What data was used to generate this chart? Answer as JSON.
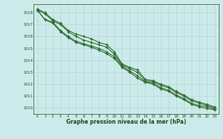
{
  "x": [
    0,
    1,
    2,
    3,
    4,
    5,
    6,
    7,
    8,
    9,
    10,
    11,
    12,
    13,
    14,
    15,
    16,
    17,
    18,
    19,
    20,
    21,
    22,
    23
  ],
  "line1": [
    1018.3,
    1018.0,
    1017.4,
    1017.1,
    1016.5,
    1016.2,
    1016.0,
    1015.8,
    1015.5,
    1015.3,
    1014.7,
    1013.7,
    1013.4,
    1013.2,
    1012.4,
    1012.3,
    1012.0,
    1011.8,
    1011.4,
    1011.1,
    1010.7,
    1010.5,
    1010.3,
    1010.1
  ],
  "line2": [
    1018.2,
    1017.9,
    1017.3,
    1017.0,
    1016.4,
    1016.0,
    1015.7,
    1015.5,
    1015.3,
    1015.1,
    1014.5,
    1013.6,
    1013.3,
    1013.0,
    1012.3,
    1012.2,
    1011.9,
    1011.7,
    1011.3,
    1011.0,
    1010.6,
    1010.4,
    1010.2,
    1010.0
  ],
  "line3": [
    1018.2,
    1017.4,
    1017.2,
    1016.5,
    1016.0,
    1015.6,
    1015.4,
    1015.2,
    1015.0,
    1014.7,
    1014.3,
    1013.5,
    1013.1,
    1012.7,
    1012.2,
    1012.1,
    1011.7,
    1011.5,
    1011.1,
    1010.8,
    1010.4,
    1010.2,
    1010.1,
    1009.9
  ],
  "line4": [
    1018.2,
    1017.4,
    1017.1,
    1016.4,
    1015.9,
    1015.5,
    1015.3,
    1015.1,
    1014.85,
    1014.55,
    1014.15,
    1013.4,
    1013.0,
    1012.5,
    1012.15,
    1012.0,
    1011.6,
    1011.4,
    1011.0,
    1010.7,
    1010.3,
    1010.1,
    1009.95,
    1009.85
  ],
  "line_color": "#2d6a2d",
  "marker_color": "#2d6a2d",
  "bg_color": "#cceaea",
  "grid_major_color": "#aad4d4",
  "grid_minor_color": "#bbdddd",
  "axis_label_color": "#1a4a1a",
  "tick_color": "#1a4a1a",
  "ylim": [
    1009.5,
    1018.7
  ],
  "xlim": [
    -0.5,
    23.5
  ],
  "yticks": [
    1010,
    1011,
    1012,
    1013,
    1014,
    1015,
    1016,
    1017,
    1018
  ],
  "xticks": [
    0,
    1,
    2,
    3,
    4,
    5,
    6,
    7,
    8,
    9,
    10,
    11,
    12,
    13,
    14,
    15,
    16,
    17,
    18,
    19,
    20,
    21,
    22,
    23
  ],
  "xlabel": "Graphe pression niveau de la mer (hPa)",
  "marker": "+",
  "linewidth": 0.8,
  "markersize": 3.5,
  "markeredgewidth": 0.9
}
